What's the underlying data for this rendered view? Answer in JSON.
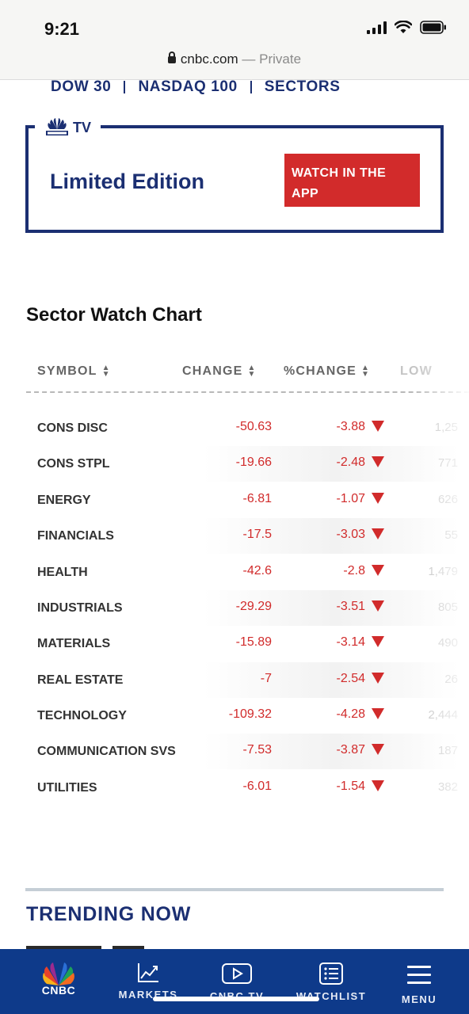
{
  "status_bar": {
    "time": "9:21"
  },
  "browser": {
    "domain": "cnbc.com",
    "separator": "—",
    "mode": "Private"
  },
  "market_nav": {
    "items": [
      "DOW 30",
      "NASDAQ 100",
      "SECTORS"
    ]
  },
  "promo": {
    "tv_label": "TV",
    "title": "Limited Edition",
    "button_label_line1": "WATCH IN THE",
    "button_label_line2": "APP"
  },
  "sector_watch": {
    "title": "Sector Watch Chart",
    "columns": [
      "SYMBOL",
      "CHANGE",
      "%CHANGE",
      "LOW"
    ],
    "rows": [
      {
        "symbol": "CONS DISC",
        "change": "-50.63",
        "pct": "-3.88",
        "low": "1,25"
      },
      {
        "symbol": "CONS STPL",
        "change": "-19.66",
        "pct": "-2.48",
        "low": "771"
      },
      {
        "symbol": "ENERGY",
        "change": "-6.81",
        "pct": "-1.07",
        "low": "626"
      },
      {
        "symbol": "FINANCIALS",
        "change": "-17.5",
        "pct": "-3.03",
        "low": "55"
      },
      {
        "symbol": "HEALTH",
        "change": "-42.6",
        "pct": "-2.8",
        "low": "1,479"
      },
      {
        "symbol": "INDUSTRIALS",
        "change": "-29.29",
        "pct": "-3.51",
        "low": "805"
      },
      {
        "symbol": "MATERIALS",
        "change": "-15.89",
        "pct": "-3.14",
        "low": "490"
      },
      {
        "symbol": "REAL ESTATE",
        "change": "-7",
        "pct": "-2.54",
        "low": "26"
      },
      {
        "symbol": "TECHNOLOGY",
        "change": "-109.32",
        "pct": "-4.28",
        "low": "2,444"
      },
      {
        "symbol": "COMMUNICATION SVS",
        "change": "-7.53",
        "pct": "-3.87",
        "low": "187"
      },
      {
        "symbol": "UTILITIES",
        "change": "-6.01",
        "pct": "-1.54",
        "low": "382"
      }
    ]
  },
  "trending": {
    "title": "TRENDING NOW"
  },
  "bottom_nav": {
    "logo_text": "CNBC",
    "items": [
      "MARKETS",
      "CNBC TV",
      "WATCHLIST",
      "MENU"
    ]
  },
  "colors": {
    "brand_navy": "#1b2f72",
    "negative_red": "#d12b2b",
    "nav_blue": "#0e3a8a",
    "accent_red": "#d22b2b"
  }
}
